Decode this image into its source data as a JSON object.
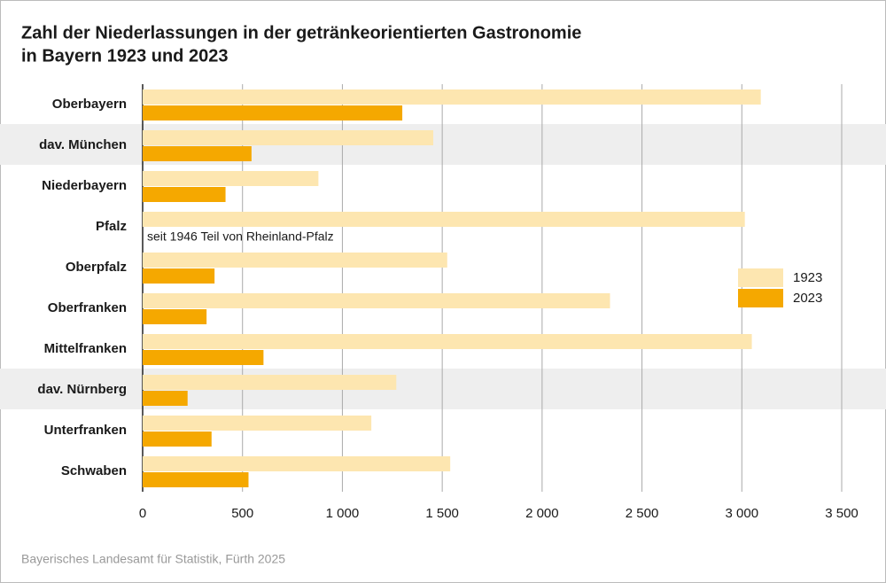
{
  "chart_data": {
    "type": "hbar",
    "title": [
      "Zahl der Niederlassungen in der getränkeorientierten Gastronomie",
      "in Bayern 1923 und 2023"
    ],
    "categories": [
      "Oberbayern",
      "dav. München",
      "Niederbayern",
      "Pfalz",
      "Oberpfalz",
      "Oberfranken",
      "Mittelfranken",
      "dav. Nürnberg",
      "Unterfranken",
      "Schwaben"
    ],
    "series": [
      {
        "name": "1923",
        "color": "#fde6b0",
        "values": [
          3095,
          1455,
          880,
          3015,
          1525,
          2340,
          3050,
          1270,
          1145,
          1540
        ]
      },
      {
        "name": "2023",
        "color": "#f5a800",
        "values": [
          1300,
          545,
          415,
          null,
          360,
          320,
          605,
          225,
          345,
          530
        ]
      }
    ],
    "annotation": "seit 1946 Teil von Rheinland-Pfalz",
    "xlim": [
      0,
      3500
    ],
    "xticks": [
      0,
      500,
      {
        "value": 1000,
        "label": "1 000"
      },
      {
        "value": 1500,
        "label": "1 500"
      },
      {
        "value": 2000,
        "label": "2 000"
      },
      {
        "value": 2500,
        "label": "2 500"
      },
      {
        "value": 3000,
        "label": "3 000"
      },
      {
        "value": 3500,
        "label": "3 500"
      }
    ],
    "grid": true,
    "highlight_rows": [
      1,
      7
    ],
    "source": "Bayerisches Landesamt für Statistik, Fürth 2025"
  }
}
